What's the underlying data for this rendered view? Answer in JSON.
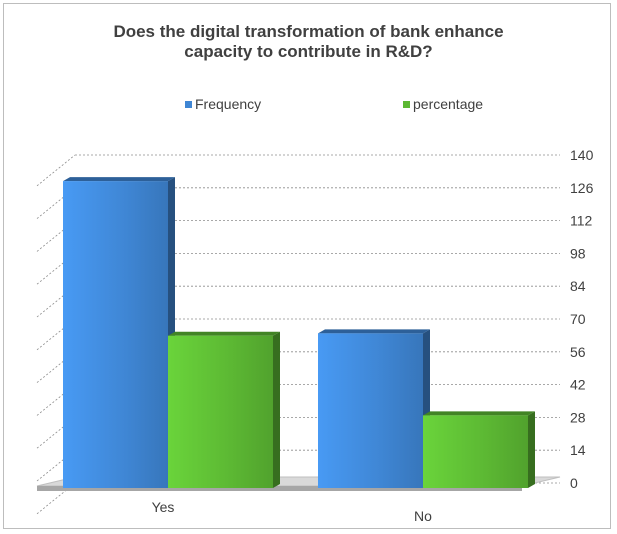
{
  "chart_data": {
    "type": "bar",
    "title": "Does the digital transformation of bank enhance capacity to contribute in R&D?",
    "title_lines": [
      "Does the digital transformation of bank enhance",
      "capacity to contribute in R&D?"
    ],
    "categories": [
      "Yes",
      "No"
    ],
    "series": [
      {
        "name": "Frequency",
        "values": [
          131,
          66
        ]
      },
      {
        "name": "percentage",
        "values": [
          65,
          31
        ]
      }
    ],
    "ylim": [
      0,
      140
    ],
    "y_ticks": [
      0,
      14,
      28,
      42,
      56,
      70,
      84,
      98,
      112,
      126,
      140
    ],
    "y_axis_side": "right",
    "grid": true,
    "legend_position": "top",
    "style": "3d-column"
  },
  "colors": {
    "frequency": "#3f86d4",
    "percentage": "#5cb833",
    "gridline": "#8c8c8c",
    "text": "#404040"
  }
}
